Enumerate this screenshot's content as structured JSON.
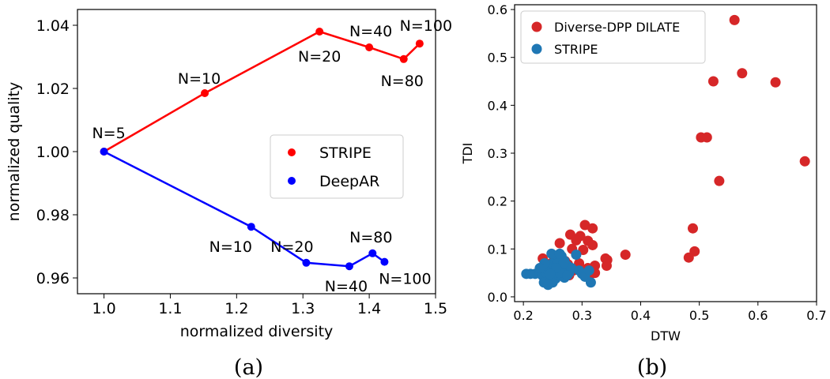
{
  "chart_data": [
    {
      "type": "line",
      "caption": "(a)",
      "xlabel": "normalized diversity",
      "ylabel": "normalized quality",
      "xlim": [
        0.96,
        1.5
      ],
      "ylim": [
        0.955,
        1.045
      ],
      "xticks": [
        "1.0",
        "1.1",
        "1.2",
        "1.3",
        "1.4",
        "1.5"
      ],
      "yticks": [
        "0.96",
        "0.98",
        "1.00",
        "1.02",
        "1.04"
      ],
      "legend_position": "center-right",
      "series": [
        {
          "name": "STRIPE",
          "color": "#ff0000",
          "points": [
            {
              "x": 1.0,
              "y": 1.0,
              "label": "N=5"
            },
            {
              "x": 1.152,
              "y": 1.0185,
              "label": "N=10"
            },
            {
              "x": 1.325,
              "y": 1.038,
              "label": "N=20"
            },
            {
              "x": 1.4,
              "y": 1.033,
              "label": "N=40"
            },
            {
              "x": 1.452,
              "y": 1.0293,
              "label": "N=80"
            },
            {
              "x": 1.476,
              "y": 1.0342,
              "label": "N=100"
            }
          ]
        },
        {
          "name": "DeepAR",
          "color": "#0000ff",
          "points": [
            {
              "x": 1.0,
              "y": 1.0,
              "label": ""
            },
            {
              "x": 1.222,
              "y": 0.9762,
              "label": "N=10"
            },
            {
              "x": 1.305,
              "y": 0.9648,
              "label": "N=20"
            },
            {
              "x": 1.37,
              "y": 0.9637,
              "label": "N=40"
            },
            {
              "x": 1.405,
              "y": 0.9678,
              "label": "N=80"
            },
            {
              "x": 1.423,
              "y": 0.9651,
              "label": "N=100"
            }
          ]
        }
      ]
    },
    {
      "type": "scatter",
      "caption": "(b)",
      "xlabel": "DTW",
      "ylabel": "TDI",
      "xlim": [
        0.185,
        0.7
      ],
      "ylim": [
        -0.01,
        0.61
      ],
      "xticks": [
        "0.2",
        "0.3",
        "0.4",
        "0.5",
        "0.6",
        "0.7"
      ],
      "yticks": [
        "0.0",
        "0.1",
        "0.2",
        "0.3",
        "0.4",
        "0.5",
        "0.6"
      ],
      "legend_position": "upper-left",
      "series": [
        {
          "name": "Diverse-DPP DILATE",
          "color": "#d62728",
          "points": [
            [
              0.56,
              0.578
            ],
            [
              0.573,
              0.467
            ],
            [
              0.63,
              0.448
            ],
            [
              0.524,
              0.45
            ],
            [
              0.68,
              0.283
            ],
            [
              0.503,
              0.333
            ],
            [
              0.513,
              0.333
            ],
            [
              0.534,
              0.242
            ],
            [
              0.489,
              0.143
            ],
            [
              0.492,
              0.095
            ],
            [
              0.482,
              0.082
            ],
            [
              0.374,
              0.088
            ],
            [
              0.305,
              0.15
            ],
            [
              0.318,
              0.143
            ],
            [
              0.28,
              0.13
            ],
            [
              0.297,
              0.127
            ],
            [
              0.29,
              0.118
            ],
            [
              0.31,
              0.117
            ],
            [
              0.262,
              0.112
            ],
            [
              0.318,
              0.108
            ],
            [
              0.283,
              0.1
            ],
            [
              0.302,
              0.098
            ],
            [
              0.34,
              0.08
            ],
            [
              0.343,
              0.077
            ],
            [
              0.233,
              0.08
            ],
            [
              0.271,
              0.075
            ],
            [
              0.295,
              0.07
            ],
            [
              0.322,
              0.065
            ],
            [
              0.342,
              0.065
            ],
            [
              0.31,
              0.06
            ],
            [
              0.3,
              0.058
            ],
            [
              0.285,
              0.055
            ],
            [
              0.258,
              0.05
            ],
            [
              0.278,
              0.045
            ],
            [
              0.322,
              0.05
            ],
            [
              0.25,
              0.058
            ],
            [
              0.265,
              0.063
            ],
            [
              0.247,
              0.07
            ],
            [
              0.276,
              0.068
            ],
            [
              0.313,
              0.045
            ]
          ]
        },
        {
          "name": "STRIPE",
          "color": "#1f77b4",
          "points": [
            [
              0.205,
              0.048
            ],
            [
              0.212,
              0.048
            ],
            [
              0.22,
              0.048
            ],
            [
              0.228,
              0.05
            ],
            [
              0.232,
              0.045
            ],
            [
              0.238,
              0.05
            ],
            [
              0.242,
              0.055
            ],
            [
              0.245,
              0.06
            ],
            [
              0.238,
              0.065
            ],
            [
              0.25,
              0.07
            ],
            [
              0.255,
              0.075
            ],
            [
              0.26,
              0.08
            ],
            [
              0.265,
              0.085
            ],
            [
              0.248,
              0.09
            ],
            [
              0.262,
              0.09
            ],
            [
              0.27,
              0.075
            ],
            [
              0.275,
              0.065
            ],
            [
              0.268,
              0.06
            ],
            [
              0.258,
              0.055
            ],
            [
              0.252,
              0.05
            ],
            [
              0.245,
              0.04
            ],
            [
              0.24,
              0.035
            ],
            [
              0.235,
              0.03
            ],
            [
              0.25,
              0.03
            ],
            [
              0.255,
              0.038
            ],
            [
              0.26,
              0.045
            ],
            [
              0.265,
              0.05
            ],
            [
              0.272,
              0.055
            ],
            [
              0.278,
              0.05
            ],
            [
              0.282,
              0.06
            ],
            [
              0.29,
              0.088
            ],
            [
              0.295,
              0.055
            ],
            [
              0.3,
              0.048
            ],
            [
              0.305,
              0.042
            ],
            [
              0.312,
              0.055
            ],
            [
              0.315,
              0.03
            ],
            [
              0.242,
              0.025
            ],
            [
              0.236,
              0.07
            ],
            [
              0.228,
              0.06
            ],
            [
              0.258,
              0.07
            ],
            [
              0.27,
              0.04
            ],
            [
              0.268,
              0.07
            ],
            [
              0.262,
              0.05
            ],
            [
              0.275,
              0.045
            ],
            [
              0.256,
              0.06
            ],
            [
              0.246,
              0.048
            ]
          ]
        }
      ]
    }
  ]
}
